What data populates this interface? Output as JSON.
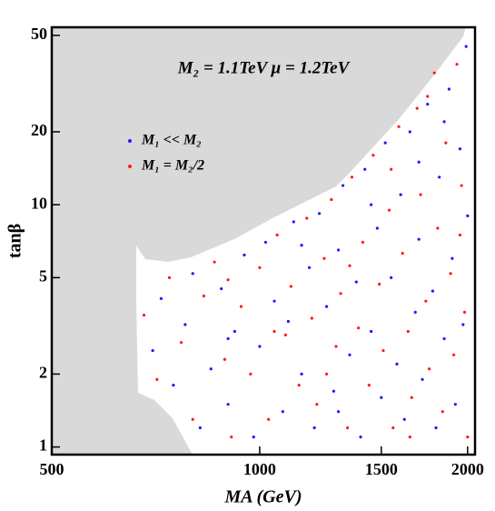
{
  "chart_data": {
    "type": "scatter",
    "annotation": "M₂ = 1.1TeV μ = 1.2TeV",
    "x_label": "MA (GeV)",
    "y_label": "tanβ",
    "xscale": "log",
    "yscale": "log",
    "xlim": [
      500,
      2050
    ],
    "ylim": [
      0.93,
      54
    ],
    "xticks": [
      500,
      1000,
      1500,
      2000
    ],
    "yticks": [
      1,
      2,
      5,
      10,
      20,
      50
    ],
    "legend": "upper left",
    "series": [
      {
        "name": "M₁ << M₂",
        "color": "#1a1aff",
        "x": [
          700,
          720,
          750,
          780,
          800,
          820,
          850,
          880,
          900,
          920,
          950,
          980,
          1000,
          1020,
          1050,
          1080,
          1100,
          1120,
          1150,
          1180,
          1200,
          1220,
          1250,
          1280,
          1300,
          1320,
          1350,
          1380,
          1400,
          1420,
          1450,
          1480,
          1500,
          1520,
          1550,
          1580,
          1600,
          1620,
          1650,
          1680,
          1700,
          1720,
          1750,
          1780,
          1800,
          1820,
          1850,
          1880,
          1900,
          1920,
          1950,
          1970,
          1990,
          2000,
          1300,
          900,
          1150,
          1700,
          1450,
          1850
        ],
        "values": [
          2.5,
          4.1,
          1.8,
          3.2,
          5.2,
          1.2,
          2.1,
          4.5,
          1.5,
          3.0,
          6.2,
          1.1,
          2.6,
          7.0,
          4.0,
          1.4,
          3.3,
          8.5,
          2.0,
          5.5,
          1.2,
          9.2,
          3.8,
          1.7,
          6.5,
          12,
          2.4,
          4.8,
          1.1,
          14,
          3.0,
          8.0,
          1.6,
          18,
          5.0,
          2.2,
          11,
          1.3,
          20,
          3.6,
          7.2,
          1.9,
          26,
          4.4,
          1.2,
          13,
          2.8,
          30,
          6.0,
          1.5,
          17,
          3.2,
          45,
          9.0,
          1.4,
          2.8,
          6.8,
          15,
          10,
          22
        ]
      },
      {
        "name": "M₁ = M₂/2",
        "color": "#ff1a1a",
        "x": [
          680,
          710,
          740,
          770,
          800,
          830,
          860,
          890,
          910,
          940,
          970,
          1000,
          1030,
          1060,
          1090,
          1110,
          1140,
          1170,
          1190,
          1210,
          1240,
          1270,
          1290,
          1310,
          1340,
          1360,
          1390,
          1410,
          1440,
          1460,
          1490,
          1510,
          1540,
          1560,
          1590,
          1610,
          1640,
          1660,
          1690,
          1710,
          1740,
          1760,
          1790,
          1810,
          1840,
          1860,
          1890,
          1910,
          1930,
          1960,
          1980,
          2000,
          1250,
          1550,
          1750,
          1950,
          1050,
          1350,
          1650,
          900
        ],
        "values": [
          3.5,
          1.9,
          5.0,
          2.7,
          1.3,
          4.2,
          5.8,
          2.3,
          1.1,
          3.8,
          2.0,
          5.5,
          1.3,
          7.5,
          2.9,
          4.6,
          1.8,
          8.8,
          3.4,
          1.5,
          6.0,
          10.5,
          2.6,
          4.3,
          1.2,
          13,
          3.1,
          7.0,
          1.8,
          16,
          4.7,
          2.5,
          9.5,
          1.2,
          21,
          6.3,
          3.0,
          1.6,
          25,
          11,
          4.0,
          2.1,
          35,
          8.0,
          1.4,
          18,
          5.2,
          2.4,
          38,
          12,
          3.6,
          1.1,
          2.0,
          14,
          28,
          7.5,
          3.0,
          5.6,
          1.1,
          4.9
        ]
      }
    ]
  }
}
